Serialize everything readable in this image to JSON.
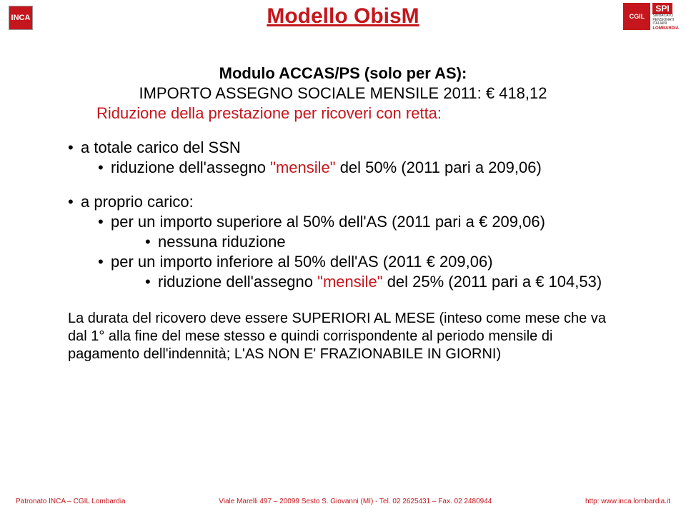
{
  "colors": {
    "accent": "#c4161c",
    "text": "#000000",
    "background": "#ffffff"
  },
  "typography": {
    "title_fontsize": 30,
    "body_fontsize": 22,
    "durata_fontsize": 20,
    "footer_fontsize": 10,
    "font_family": "Arial"
  },
  "logos": {
    "left": "INCA",
    "cgil": "CGIL",
    "spi": "SPI",
    "spi_sub1": "SINDACATO",
    "spi_sub2": "PENSIONATI",
    "spi_sub3": "ITALIANI",
    "spi_lomb": "LOMBARDIA"
  },
  "title": "Modello ObisM",
  "subtitle": "Modulo ACCAS/PS (solo per AS):",
  "importo": "IMPORTO ASSEGNO SOCIALE MENSILE 2011: € 418,12",
  "riduzione_header": "Riduzione della prestazione per ricoveri con retta:",
  "bullets": {
    "b1": "a totale carico del SSN",
    "b1_1_pre": "riduzione dell'assegno ",
    "b1_1_mens": "\"mensile\" ",
    "b1_1_post": "del 50% (2011 pari a 209,06)",
    "b2": "a proprio carico:",
    "b2_1": "per un importo superiore al 50% dell'AS (2011 pari a € 209,06)",
    "b2_1_1": "nessuna riduzione",
    "b2_2": "per un importo inferiore al 50% dell'AS (2011 € 209,06)",
    "b2_2_1_pre": "riduzione dell'assegno ",
    "b2_2_1_mens": "\"mensile\" ",
    "b2_2_1_post": "del 25% (2011 pari a €  104,53)"
  },
  "durata": "La durata del ricovero deve essere SUPERIORI AL MESE (inteso come mese che va dal 1° alla fine del mese stesso e quindi corrispondente al periodo mensile di pagamento dell'indennità; L'AS NON E' FRAZIONABILE IN GIORNI)",
  "footer": {
    "left": "Patronato INCA – CGIL Lombardia",
    "mid": "Viale Marelli 497 – 20099 Sesto S. Giovanni (MI) - Tel. 02 2625431 – Fax. 02 2480944",
    "right": "http: www.inca.lombardia.it"
  }
}
